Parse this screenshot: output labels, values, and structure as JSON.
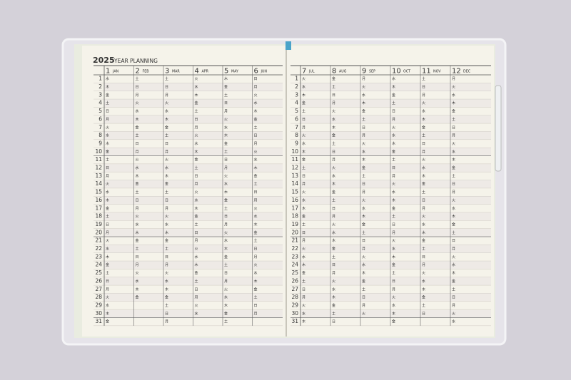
{
  "header": {
    "year": "2025",
    "title": "YEAR PLANNING"
  },
  "pages": [
    {
      "days": [
        1,
        2,
        3,
        4,
        5,
        6,
        7,
        8,
        9,
        10,
        11,
        12,
        13,
        14,
        15,
        16,
        17,
        18,
        19,
        20,
        21,
        22,
        23,
        24,
        25,
        26,
        27,
        28,
        29,
        30,
        31
      ],
      "months": [
        {
          "number": 1,
          "name": "JAN",
          "weekdays": [
            "水",
            "木",
            "金",
            "土",
            "日",
            "月",
            "火",
            "水",
            "木",
            "金",
            "土",
            "日",
            "月",
            "火",
            "水",
            "木",
            "金",
            "土",
            "日",
            "月",
            "火",
            "水",
            "木",
            "金",
            "土",
            "日",
            "月",
            "火",
            "水",
            "木",
            "金"
          ]
        },
        {
          "number": 2,
          "name": "FEB",
          "weekdays": [
            "土",
            "日",
            "月",
            "火",
            "水",
            "木",
            "金",
            "土",
            "日",
            "月",
            "火",
            "水",
            "木",
            "金",
            "土",
            "日",
            "月",
            "火",
            "水",
            "木",
            "金",
            "土",
            "日",
            "月",
            "火",
            "水",
            "木",
            "金"
          ]
        },
        {
          "number": 3,
          "name": "MAR",
          "weekdays": [
            "土",
            "日",
            "月",
            "火",
            "水",
            "木",
            "金",
            "土",
            "日",
            "月",
            "火",
            "水",
            "木",
            "金",
            "土",
            "日",
            "月",
            "火",
            "水",
            "木",
            "金",
            "土",
            "日",
            "月",
            "火",
            "水",
            "木",
            "金",
            "土",
            "日",
            "月"
          ]
        },
        {
          "number": 4,
          "name": "APR",
          "weekdays": [
            "火",
            "水",
            "木",
            "金",
            "土",
            "日",
            "月",
            "火",
            "水",
            "木",
            "金",
            "土",
            "日",
            "月",
            "火",
            "水",
            "木",
            "金",
            "土",
            "日",
            "月",
            "火",
            "水",
            "木",
            "金",
            "土",
            "日",
            "月",
            "火",
            "水"
          ]
        },
        {
          "number": 5,
          "name": "MAY",
          "weekdays": [
            "木",
            "金",
            "土",
            "日",
            "月",
            "火",
            "水",
            "木",
            "金",
            "土",
            "日",
            "月",
            "火",
            "水",
            "木",
            "金",
            "土",
            "日",
            "月",
            "火",
            "水",
            "木",
            "金",
            "土",
            "日",
            "月",
            "火",
            "水",
            "木",
            "金",
            "土"
          ]
        },
        {
          "number": 6,
          "name": "JUN",
          "weekdays": [
            "日",
            "月",
            "火",
            "水",
            "木",
            "金",
            "土",
            "日",
            "月",
            "火",
            "水",
            "木",
            "金",
            "土",
            "日",
            "月",
            "火",
            "水",
            "木",
            "金",
            "土",
            "日",
            "月",
            "火",
            "水",
            "木",
            "金",
            "土",
            "日",
            "月"
          ]
        }
      ]
    },
    {
      "days": [
        1,
        2,
        3,
        4,
        5,
        6,
        7,
        8,
        9,
        10,
        11,
        12,
        13,
        14,
        15,
        16,
        17,
        18,
        19,
        20,
        21,
        22,
        23,
        24,
        25,
        26,
        27,
        28,
        29,
        30,
        31
      ],
      "months": [
        {
          "number": 7,
          "name": "JUL",
          "weekdays": [
            "火",
            "水",
            "木",
            "金",
            "土",
            "日",
            "月",
            "火",
            "水",
            "木",
            "金",
            "土",
            "日",
            "月",
            "火",
            "水",
            "木",
            "金",
            "土",
            "日",
            "月",
            "火",
            "水",
            "木",
            "金",
            "土",
            "日",
            "月",
            "火",
            "水",
            "木"
          ]
        },
        {
          "number": 8,
          "name": "AUG",
          "weekdays": [
            "金",
            "土",
            "日",
            "月",
            "火",
            "水",
            "木",
            "金",
            "土",
            "日",
            "月",
            "火",
            "水",
            "木",
            "金",
            "土",
            "日",
            "月",
            "火",
            "水",
            "木",
            "金",
            "土",
            "日",
            "月",
            "火",
            "水",
            "木",
            "金",
            "土",
            "日"
          ]
        },
        {
          "number": 9,
          "name": "SEP",
          "weekdays": [
            "月",
            "火",
            "水",
            "木",
            "金",
            "土",
            "日",
            "月",
            "火",
            "水",
            "木",
            "金",
            "土",
            "日",
            "月",
            "火",
            "水",
            "木",
            "金",
            "土",
            "日",
            "月",
            "火",
            "水",
            "木",
            "金",
            "土",
            "日",
            "月",
            "火"
          ]
        },
        {
          "number": 10,
          "name": "OCT",
          "weekdays": [
            "水",
            "木",
            "金",
            "土",
            "日",
            "月",
            "火",
            "水",
            "木",
            "金",
            "土",
            "日",
            "月",
            "火",
            "水",
            "木",
            "金",
            "土",
            "日",
            "月",
            "火",
            "水",
            "木",
            "金",
            "土",
            "日",
            "月",
            "火",
            "水",
            "木",
            "金"
          ]
        },
        {
          "number": 11,
          "name": "NOV",
          "weekdays": [
            "土",
            "日",
            "月",
            "火",
            "水",
            "木",
            "金",
            "土",
            "日",
            "月",
            "火",
            "水",
            "木",
            "金",
            "土",
            "日",
            "月",
            "火",
            "水",
            "木",
            "金",
            "土",
            "日",
            "月",
            "火",
            "水",
            "木",
            "金",
            "土",
            "日"
          ]
        },
        {
          "number": 12,
          "name": "DEC",
          "weekdays": [
            "月",
            "火",
            "水",
            "木",
            "金",
            "土",
            "日",
            "月",
            "火",
            "水",
            "木",
            "金",
            "土",
            "日",
            "月",
            "火",
            "水",
            "木",
            "金",
            "土",
            "日",
            "月",
            "火",
            "水",
            "木",
            "金",
            "土",
            "日",
            "月",
            "火",
            "水"
          ]
        }
      ]
    }
  ]
}
